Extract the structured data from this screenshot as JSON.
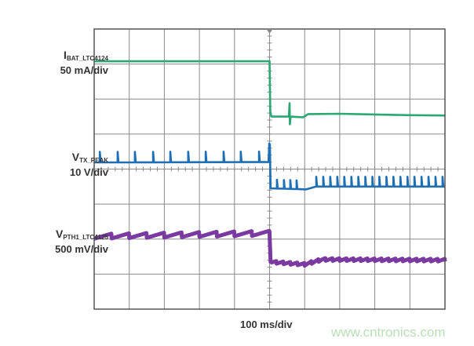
{
  "chart_data": {
    "type": "line",
    "title": "",
    "xlabel": "100 ms/div",
    "x_units": "ms",
    "xlim": [
      0,
      1000
    ],
    "y_units": "div",
    "ylim": [
      0,
      8
    ],
    "grid": {
      "on": true,
      "x_divisions": 10,
      "y_divisions": 8,
      "color": "#8a8a8a",
      "frame_color": "#555555"
    },
    "series": [
      {
        "name": "IBAT_LTC4124",
        "label_main": "I",
        "label_sub": "BAT_LTC4124",
        "scale": "50 mA/div",
        "color": "#2aa772",
        "points": [
          [
            0,
            0.92
          ],
          [
            500,
            0.92
          ],
          [
            502,
            2.35
          ],
          [
            505,
            2.5
          ],
          [
            555,
            2.5
          ],
          [
            557,
            2.12
          ],
          [
            558,
            2.72
          ],
          [
            560,
            2.5
          ],
          [
            595,
            2.52
          ],
          [
            610,
            2.43
          ],
          [
            700,
            2.42
          ],
          [
            800,
            2.44
          ],
          [
            900,
            2.46
          ],
          [
            1000,
            2.47
          ]
        ]
      },
      {
        "name": "VTX_PEAK",
        "label_main": "V",
        "label_sub": "TX_PEAK",
        "scale": "10 V/div",
        "color": "#1f6fb5",
        "points": [
          [
            0,
            3.81
          ],
          [
            497,
            3.8
          ],
          [
            499,
            3.27
          ],
          [
            501,
            3.3
          ],
          [
            503,
            4.55
          ],
          [
            604,
            4.58
          ],
          [
            633,
            4.5
          ],
          [
            1000,
            4.5
          ]
        ],
        "spikes": [
          {
            "t": [
              16,
              67,
              116,
              168,
              217,
              268,
              318,
              369,
              418,
              470
            ],
            "height": 0.3
          },
          {
            "t": [
              521,
              541,
              559,
              577
            ],
            "height": 0.25
          },
          {
            "t": [
              633,
              653,
              673,
              693,
              713,
              733,
              753,
              773,
              793,
              813,
              833,
              853,
              873,
              893,
              913,
              933,
              953,
              973,
              993
            ],
            "height": 0.28
          }
        ]
      },
      {
        "name": "VPTH1_LTC4125",
        "label_main": "V",
        "label_sub": "PTH1_LTC4125",
        "scale": "500 mV/div",
        "color": "#7b3aa0",
        "points": [
          [
            0,
            5.92
          ],
          [
            500,
            5.83
          ],
          [
            503,
            6.65
          ],
          [
            600,
            6.72
          ],
          [
            650,
            6.58
          ],
          [
            1000,
            6.6
          ]
        ],
        "sawtooth": {
          "before_period_ms": 50,
          "before_amplitude_div": 0.14,
          "after_period_ms": 20,
          "after_amplitude_div": 0.08
        }
      }
    ]
  },
  "watermark": "www.cntronics.com"
}
